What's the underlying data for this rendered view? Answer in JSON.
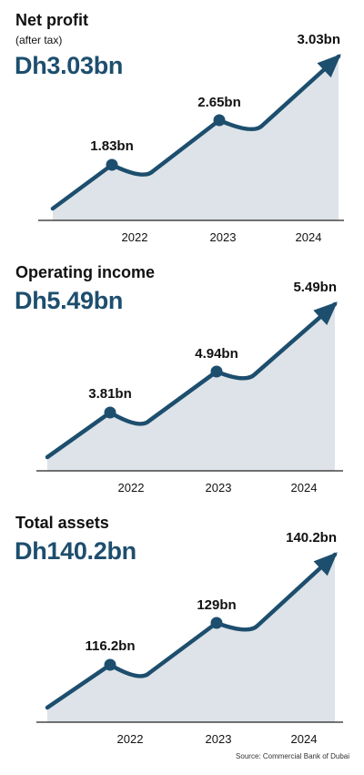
{
  "colors": {
    "accent": "#1d4e6e",
    "fill": "#dde3e8",
    "axis": "#222222",
    "text": "#111111"
  },
  "chart_data": [
    {
      "type": "line",
      "title": "Net profit",
      "subtitle": "(after tax)",
      "headline": "Dh3.03bn",
      "categories": [
        "2022",
        "2023",
        "2024"
      ],
      "series": [
        {
          "values": [
            1.83,
            2.65,
            3.03
          ]
        }
      ],
      "data_labels": [
        "1.83bn",
        "2.65bn",
        "3.03bn"
      ]
    },
    {
      "type": "line",
      "title": "Operating income",
      "subtitle": "",
      "headline": "Dh5.49bn",
      "categories": [
        "2022",
        "2023",
        "2024"
      ],
      "series": [
        {
          "values": [
            3.81,
            4.94,
            5.49
          ]
        }
      ],
      "data_labels": [
        "3.81bn",
        "4.94bn",
        "5.49bn"
      ]
    },
    {
      "type": "line",
      "title": "Total assets",
      "subtitle": "",
      "headline": "Dh140.2bn",
      "categories": [
        "2022",
        "2023",
        "2024"
      ],
      "series": [
        {
          "values": [
            116.2,
            129,
            140.2
          ]
        }
      ],
      "data_labels": [
        "116.2bn",
        "129bn",
        "140.2bn"
      ]
    }
  ],
  "source": "Source: Commercial Bank of Dubai"
}
